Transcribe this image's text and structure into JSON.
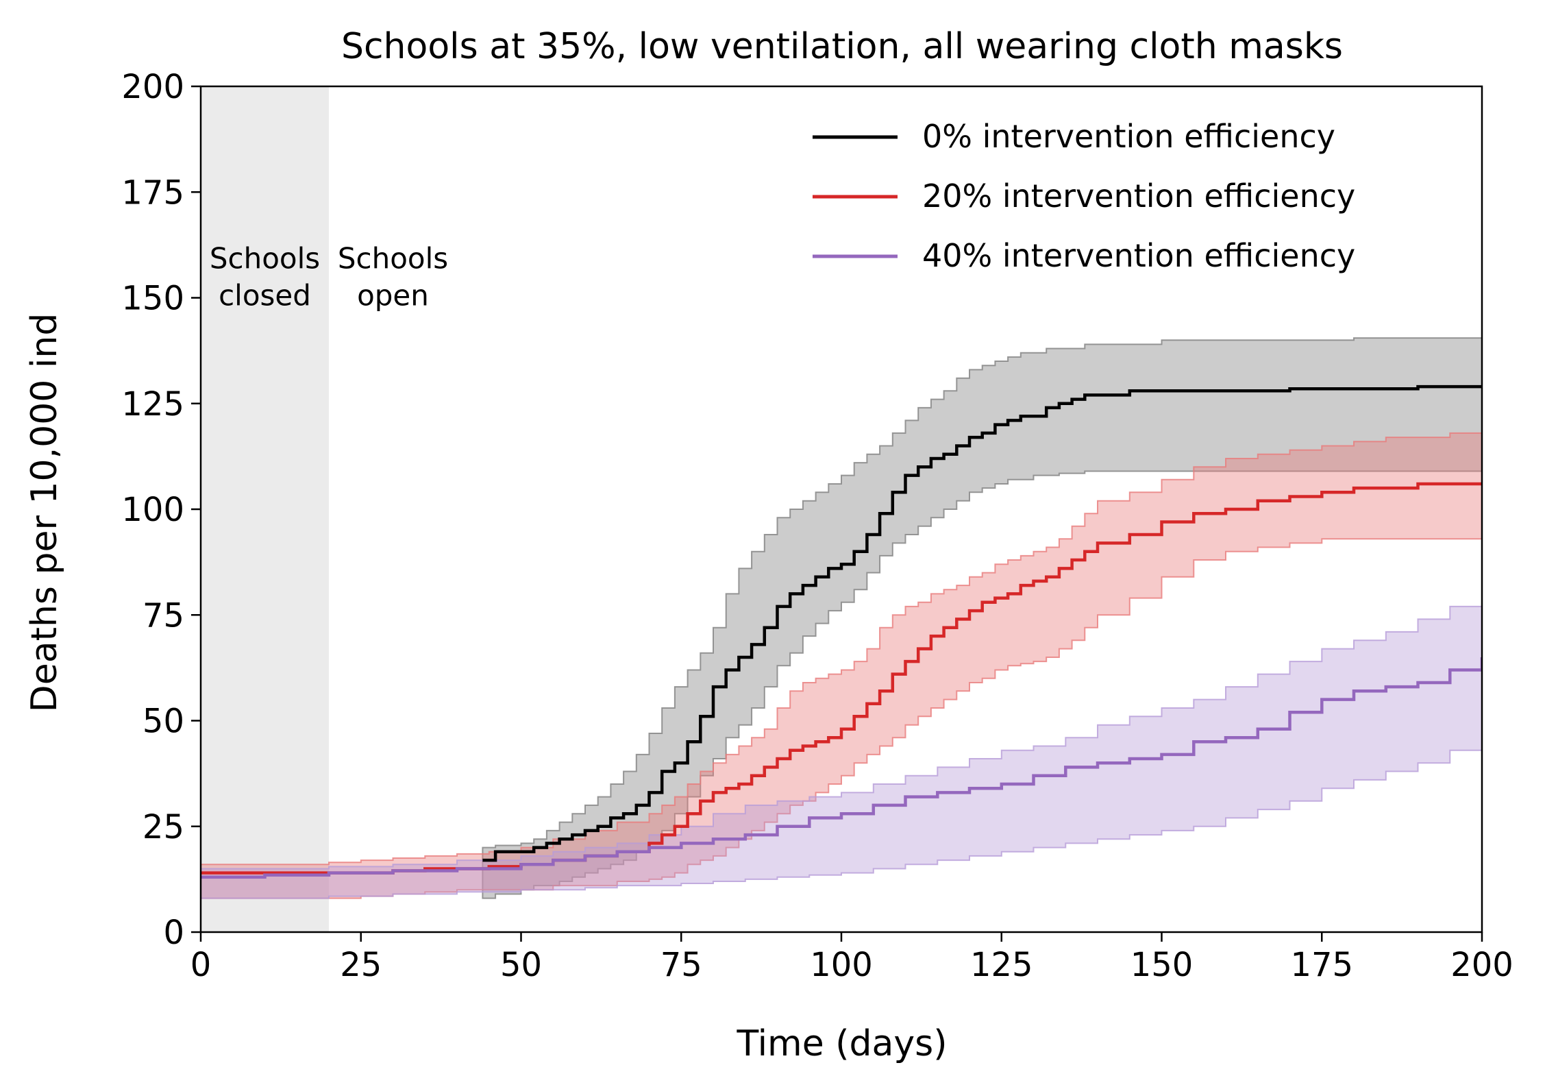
{
  "chart_data": {
    "type": "line",
    "title": "Schools at 35%, low ventilation, all wearing cloth masks",
    "xlabel": "Time (days)",
    "ylabel": "Deaths per 10,000 ind",
    "xlim": [
      0,
      200
    ],
    "ylim": [
      0,
      200
    ],
    "xticks": [
      "0",
      "25",
      "50",
      "75",
      "100",
      "125",
      "150",
      "175",
      "200"
    ],
    "yticks": [
      "0",
      "25",
      "50",
      "75",
      "100",
      "125",
      "150",
      "175",
      "200"
    ],
    "legend_position": "top-right",
    "grid": false,
    "shaded_region": {
      "x_start": 0,
      "x_end": 20,
      "color": "#e8e8e8"
    },
    "annotations": [
      {
        "line1": "Schools",
        "line2": "closed",
        "x": 10,
        "y": 157
      },
      {
        "line1": "Schools",
        "line2": "open",
        "x": 30,
        "y": 157
      }
    ],
    "series": [
      {
        "name": "0% intervention efficiency",
        "color": "#000000",
        "band_color": "#808080",
        "x": [
          44,
          46,
          50,
          52,
          54,
          56,
          58,
          60,
          62,
          64,
          66,
          68,
          70,
          72,
          74,
          76,
          78,
          80,
          82,
          84,
          86,
          88,
          90,
          92,
          94,
          96,
          98,
          100,
          102,
          104,
          106,
          108,
          110,
          112,
          114,
          116,
          118,
          120,
          122,
          124,
          126,
          128,
          130,
          132,
          134,
          136,
          138,
          140,
          145,
          150,
          160,
          170,
          180,
          190,
          200
        ],
        "y": [
          17,
          19,
          19,
          20,
          21,
          22,
          23,
          24,
          25,
          27,
          28,
          30,
          33,
          38,
          40,
          45,
          51,
          58,
          62,
          65,
          68,
          72,
          77,
          80,
          82,
          84,
          86,
          87,
          90,
          94,
          99,
          104,
          108,
          110,
          112,
          113,
          115,
          117,
          118,
          120,
          121,
          122,
          122,
          124,
          125,
          126,
          127,
          127,
          128,
          128,
          128,
          128.5,
          128.5,
          129,
          129
        ],
        "lower": [
          8,
          9,
          10,
          11,
          11,
          12,
          13,
          14,
          15,
          16,
          17,
          19,
          21,
          24,
          28,
          32,
          37,
          41,
          46,
          49,
          53,
          58,
          63,
          66,
          70,
          73,
          76,
          78,
          81,
          85,
          89,
          92,
          94,
          96,
          98,
          100,
          102,
          104,
          105,
          106,
          107,
          107,
          108,
          108,
          108.5,
          108.5,
          109,
          109,
          109,
          109,
          109,
          109,
          109,
          109,
          109
        ],
        "upper": [
          20,
          20.5,
          21,
          22,
          24,
          26,
          28,
          30,
          32,
          35,
          38,
          42,
          47,
          53,
          58,
          62,
          66,
          72,
          80,
          86,
          90,
          94,
          98,
          100,
          102,
          104,
          106,
          108,
          111,
          113,
          115,
          118,
          121,
          124,
          126,
          128,
          131,
          133,
          134,
          135,
          136,
          137,
          137,
          138,
          138,
          138,
          139,
          139,
          139,
          140,
          140,
          140,
          140.5,
          140.5,
          140.5
        ]
      },
      {
        "name": "20% intervention efficiency",
        "color": "#d62728",
        "band_color": "#e87a7b",
        "x": [
          0,
          10,
          20,
          25,
          30,
          35,
          40,
          45,
          50,
          55,
          60,
          65,
          70,
          72,
          74,
          76,
          78,
          80,
          82,
          84,
          86,
          88,
          90,
          92,
          94,
          96,
          98,
          100,
          102,
          104,
          106,
          108,
          110,
          112,
          114,
          116,
          118,
          120,
          122,
          124,
          126,
          128,
          130,
          132,
          134,
          136,
          138,
          140,
          145,
          150,
          155,
          160,
          165,
          170,
          175,
          180,
          185,
          190,
          195,
          200
        ],
        "y": [
          14,
          14,
          14,
          14,
          14.5,
          15,
          15,
          15.5,
          16,
          17,
          18,
          19,
          21,
          23,
          25,
          28,
          31,
          33,
          34,
          35,
          37,
          39,
          41,
          43,
          44,
          45,
          46,
          48,
          51,
          54,
          57,
          61,
          64,
          67,
          70,
          72,
          74,
          76,
          78,
          79,
          80,
          82,
          83,
          84,
          86,
          88,
          90,
          92,
          94,
          97,
          99,
          100,
          102,
          103,
          104,
          105,
          105,
          106,
          106,
          106
        ],
        "lower": [
          8,
          8,
          8,
          8.5,
          9,
          9.5,
          10,
          10,
          10,
          11,
          11,
          12,
          12.5,
          13,
          14,
          16,
          17,
          18,
          20,
          22,
          24,
          26,
          28,
          30,
          31,
          33,
          35,
          37,
          40,
          42,
          44,
          46,
          49,
          51,
          53,
          55,
          57,
          59,
          60,
          62,
          63,
          63.5,
          64,
          65,
          67,
          69,
          72,
          75,
          79,
          84,
          88,
          90,
          91,
          92,
          93,
          93,
          93,
          93,
          93,
          93
        ],
        "upper": [
          16,
          16,
          16.5,
          17,
          17.5,
          18,
          18.5,
          19,
          20,
          22,
          24,
          26,
          28,
          30,
          32,
          35,
          38,
          40,
          42,
          44,
          46,
          48,
          53,
          57,
          59,
          60,
          61,
          62,
          64,
          67,
          72,
          75,
          77,
          78,
          80,
          81,
          82,
          84,
          85,
          87,
          88,
          89,
          90,
          91,
          93,
          96,
          99,
          102,
          104,
          107,
          110,
          112,
          113,
          114,
          115,
          116,
          117,
          117,
          118,
          118
        ]
      },
      {
        "name": "40% intervention efficiency",
        "color": "#9467bd",
        "band_color": "#b79cd8",
        "x": [
          0,
          10,
          20,
          30,
          40,
          50,
          55,
          60,
          65,
          70,
          75,
          80,
          85,
          90,
          95,
          100,
          105,
          110,
          115,
          120,
          125,
          130,
          135,
          140,
          145,
          150,
          155,
          160,
          165,
          170,
          175,
          180,
          185,
          190,
          195,
          200
        ],
        "y": [
          13,
          13.5,
          14,
          14.5,
          15,
          16,
          17,
          18,
          19,
          20,
          21,
          22,
          23,
          25,
          27,
          28,
          30,
          32,
          33,
          34,
          35,
          37,
          39,
          40,
          41,
          42,
          45,
          46,
          48,
          52,
          55,
          57,
          58,
          59,
          62,
          65
        ],
        "lower": [
          8,
          8,
          8.5,
          9,
          9.5,
          10,
          10,
          10.5,
          11,
          11,
          11.5,
          12,
          12.5,
          13,
          13.5,
          14,
          15,
          16,
          17,
          18,
          19,
          20,
          21,
          22,
          23,
          24,
          25,
          27,
          29,
          31,
          34,
          36,
          38,
          40,
          43,
          46
        ],
        "upper": [
          15,
          15,
          15.5,
          16,
          17,
          18,
          19,
          20,
          21,
          23,
          25,
          28,
          30,
          31,
          32,
          33,
          35,
          37,
          39,
          41,
          43,
          44,
          46,
          49,
          51,
          53,
          55,
          58,
          61,
          64,
          67,
          69,
          71,
          74,
          77,
          81
        ]
      }
    ]
  }
}
